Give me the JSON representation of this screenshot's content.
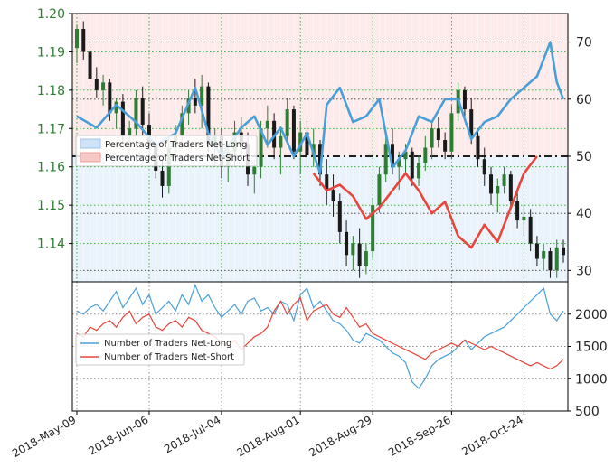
{
  "chart_data": [
    {
      "type": "candlestick+line",
      "left_axis": {
        "ticks": [
          "1.20",
          "1.19",
          "1.18",
          "1.17",
          "1.16",
          "1.15",
          "1.14"
        ],
        "color": "#2e7d32",
        "ylim": [
          1.13,
          1.2
        ]
      },
      "right_axis": {
        "ticks": [
          "70",
          "60",
          "50",
          "40",
          "30"
        ],
        "ylim": [
          28,
          75
        ]
      },
      "reference_line": 50,
      "legend": {
        "placement": "left",
        "entries": [
          "Percentage of Traders Net-Long",
          "Percentage of Traders Net-Short"
        ]
      },
      "grid": true,
      "candles": [
        [
          1.191,
          1.197,
          1.187,
          1.196
        ],
        [
          1.196,
          1.198,
          1.188,
          1.19
        ],
        [
          1.19,
          1.192,
          1.181,
          1.183
        ],
        [
          1.183,
          1.186,
          1.178,
          1.18
        ],
        [
          1.18,
          1.184,
          1.176,
          1.182
        ],
        [
          1.182,
          1.183,
          1.172,
          1.174
        ],
        [
          1.174,
          1.178,
          1.17,
          1.177
        ],
        [
          1.177,
          1.179,
          1.166,
          1.168
        ],
        [
          1.168,
          1.172,
          1.163,
          1.17
        ],
        [
          1.17,
          1.18,
          1.168,
          1.178
        ],
        [
          1.178,
          1.181,
          1.168,
          1.171
        ],
        [
          1.171,
          1.174,
          1.164,
          1.166
        ],
        [
          1.166,
          1.168,
          1.157,
          1.159
        ],
        [
          1.159,
          1.162,
          1.152,
          1.155
        ],
        [
          1.155,
          1.168,
          1.153,
          1.165
        ],
        [
          1.165,
          1.171,
          1.161,
          1.168
        ],
        [
          1.168,
          1.176,
          1.165,
          1.174
        ],
        [
          1.174,
          1.18,
          1.171,
          1.178
        ],
        [
          1.178,
          1.183,
          1.174,
          1.176
        ],
        [
          1.176,
          1.184,
          1.17,
          1.181
        ],
        [
          1.181,
          1.182,
          1.164,
          1.166
        ],
        [
          1.166,
          1.17,
          1.16,
          1.168
        ],
        [
          1.168,
          1.17,
          1.157,
          1.16
        ],
        [
          1.16,
          1.166,
          1.156,
          1.164
        ],
        [
          1.164,
          1.172,
          1.16,
          1.169
        ],
        [
          1.169,
          1.173,
          1.163,
          1.166
        ],
        [
          1.166,
          1.169,
          1.155,
          1.158
        ],
        [
          1.158,
          1.162,
          1.153,
          1.16
        ],
        [
          1.16,
          1.172,
          1.157,
          1.17
        ],
        [
          1.17,
          1.176,
          1.165,
          1.172
        ],
        [
          1.172,
          1.174,
          1.162,
          1.165
        ],
        [
          1.165,
          1.17,
          1.158,
          1.168
        ],
        [
          1.168,
          1.178,
          1.166,
          1.175
        ],
        [
          1.175,
          1.176,
          1.162,
          1.164
        ],
        [
          1.164,
          1.172,
          1.158,
          1.169
        ],
        [
          1.169,
          1.172,
          1.16,
          1.163
        ],
        [
          1.163,
          1.17,
          1.16,
          1.166
        ],
        [
          1.166,
          1.167,
          1.155,
          1.158
        ],
        [
          1.158,
          1.162,
          1.15,
          1.154
        ],
        [
          1.154,
          1.158,
          1.147,
          1.151
        ],
        [
          1.151,
          1.153,
          1.14,
          1.143
        ],
        [
          1.143,
          1.146,
          1.134,
          1.137
        ],
        [
          1.137,
          1.142,
          1.133,
          1.14
        ],
        [
          1.14,
          1.144,
          1.131,
          1.134
        ],
        [
          1.134,
          1.14,
          1.132,
          1.138
        ],
        [
          1.138,
          1.152,
          1.136,
          1.15
        ],
        [
          1.15,
          1.16,
          1.148,
          1.158
        ],
        [
          1.158,
          1.168,
          1.156,
          1.166
        ],
        [
          1.166,
          1.17,
          1.158,
          1.16
        ],
        [
          1.16,
          1.164,
          1.154,
          1.162
        ],
        [
          1.162,
          1.166,
          1.158,
          1.164
        ],
        [
          1.164,
          1.165,
          1.155,
          1.157
        ],
        [
          1.157,
          1.163,
          1.155,
          1.161
        ],
        [
          1.161,
          1.168,
          1.159,
          1.165
        ],
        [
          1.165,
          1.172,
          1.162,
          1.17
        ],
        [
          1.17,
          1.173,
          1.165,
          1.167
        ],
        [
          1.167,
          1.169,
          1.162,
          1.164
        ],
        [
          1.164,
          1.176,
          1.162,
          1.174
        ],
        [
          1.174,
          1.182,
          1.172,
          1.18
        ],
        [
          1.18,
          1.181,
          1.172,
          1.175
        ],
        [
          1.175,
          1.178,
          1.166,
          1.168
        ],
        [
          1.168,
          1.17,
          1.16,
          1.162
        ],
        [
          1.162,
          1.165,
          1.155,
          1.158
        ],
        [
          1.158,
          1.16,
          1.15,
          1.153
        ],
        [
          1.153,
          1.157,
          1.148,
          1.155
        ],
        [
          1.155,
          1.16,
          1.153,
          1.158
        ],
        [
          1.158,
          1.159,
          1.149,
          1.151
        ],
        [
          1.151,
          1.154,
          1.144,
          1.146
        ],
        [
          1.146,
          1.15,
          1.142,
          1.147
        ],
        [
          1.147,
          1.149,
          1.138,
          1.14
        ],
        [
          1.14,
          1.142,
          1.134,
          1.136
        ],
        [
          1.136,
          1.14,
          1.133,
          1.138
        ],
        [
          1.138,
          1.139,
          1.131,
          1.133
        ],
        [
          1.133,
          1.141,
          1.131,
          1.139
        ],
        [
          1.139,
          1.141,
          1.135,
          1.137
        ]
      ],
      "net_long_pct": [
        [
          0,
          57
        ],
        [
          3,
          55
        ],
        [
          6,
          59
        ],
        [
          9,
          56
        ],
        [
          12,
          52
        ],
        [
          15,
          54
        ],
        [
          18,
          62
        ],
        [
          20,
          54
        ],
        [
          22,
          50
        ],
        [
          25,
          55
        ],
        [
          27,
          57
        ],
        [
          29,
          52
        ],
        [
          31,
          55
        ],
        [
          33,
          50
        ],
        [
          35,
          54
        ],
        [
          37,
          47
        ],
        [
          38,
          59
        ],
        [
          40,
          62
        ],
        [
          42,
          56
        ],
        [
          44,
          57
        ],
        [
          46,
          60
        ],
        [
          47,
          54
        ],
        [
          48,
          48
        ],
        [
          50,
          51
        ],
        [
          52,
          57
        ],
        [
          54,
          56
        ],
        [
          56,
          60
        ],
        [
          58,
          60
        ],
        [
          60,
          53
        ],
        [
          62,
          56
        ],
        [
          64,
          57
        ],
        [
          66,
          60
        ],
        [
          68,
          62
        ],
        [
          70,
          64
        ],
        [
          72,
          70
        ],
        [
          73,
          63
        ],
        [
          74,
          60
        ]
      ],
      "net_short_pct": [
        [
          36,
          47
        ],
        [
          38,
          44
        ],
        [
          40,
          45
        ],
        [
          42,
          43
        ],
        [
          44,
          39
        ],
        [
          46,
          41
        ],
        [
          48,
          44
        ],
        [
          50,
          47
        ],
        [
          52,
          44
        ],
        [
          54,
          40
        ],
        [
          56,
          42
        ],
        [
          58,
          36
        ],
        [
          60,
          34
        ],
        [
          62,
          38
        ],
        [
          64,
          35
        ],
        [
          66,
          41
        ],
        [
          68,
          47
        ],
        [
          70,
          50
        ]
      ],
      "sub_axis": {
        "ticks": [
          "2000",
          "1500",
          "1000",
          "500"
        ],
        "ylim": [
          500,
          2500
        ]
      },
      "sub_legend": {
        "placement": "left",
        "entries": [
          "Number of Traders Net-Long",
          "Number of Traders Net-Short"
        ]
      },
      "traders_net_long": [
        2050,
        2000,
        2100,
        2150,
        2050,
        2200,
        2350,
        2100,
        2250,
        2400,
        2150,
        2300,
        2000,
        2100,
        2200,
        2050,
        2300,
        2150,
        2450,
        2200,
        2300,
        2100,
        1950,
        2050,
        2150,
        2000,
        2200,
        2250,
        2050,
        2100,
        2000,
        2200,
        2150,
        1900,
        2300,
        2400,
        2100,
        2200,
        2050,
        1900,
        1850,
        1750,
        1600,
        1550,
        1700,
        1650,
        1600,
        1500,
        1400,
        1350,
        1250,
        950,
        850,
        1000,
        1200,
        1300,
        1350,
        1400,
        1500,
        1600,
        1450,
        1550,
        1650,
        1700,
        1750,
        1800,
        1900,
        2000,
        2100,
        2200,
        2300,
        2400,
        2000,
        1900,
        2050
      ],
      "traders_net_short": [
        1700,
        1650,
        1800,
        1750,
        1850,
        1900,
        1800,
        1950,
        2050,
        1850,
        1950,
        2000,
        1800,
        1750,
        1850,
        1900,
        1800,
        1950,
        1900,
        1750,
        1700,
        1650,
        1550,
        1500,
        1600,
        1450,
        1550,
        1650,
        1700,
        1800,
        2050,
        2200,
        2000,
        2150,
        2250,
        1900,
        2050,
        2100,
        2150,
        2000,
        1950,
        2100,
        1950,
        1800,
        1850,
        1700,
        1650,
        1600,
        1550,
        1500,
        1450,
        1400,
        1350,
        1300,
        1400,
        1450,
        1500,
        1550,
        1500,
        1600,
        1550,
        1500,
        1450,
        1500,
        1450,
        1400,
        1350,
        1300,
        1250,
        1200,
        1250,
        1200,
        1150,
        1200,
        1300
      ],
      "x_ticks": [
        "2018-May-09",
        "2018-Jun-06",
        "2018-Jul-04",
        "2018-Aug-01",
        "2018-Aug-29",
        "2018-Sep-26",
        "2018-Oct-24"
      ],
      "colors": {
        "up": "#2e7d32",
        "down": "#1a1a1a",
        "long": "#4a9fd8",
        "short": "#e8453c",
        "long_fill": "#eaf3fb",
        "short_fill": "#fdeaea",
        "grid_green": "#27a127",
        "grid_black": "#333333"
      }
    }
  ]
}
